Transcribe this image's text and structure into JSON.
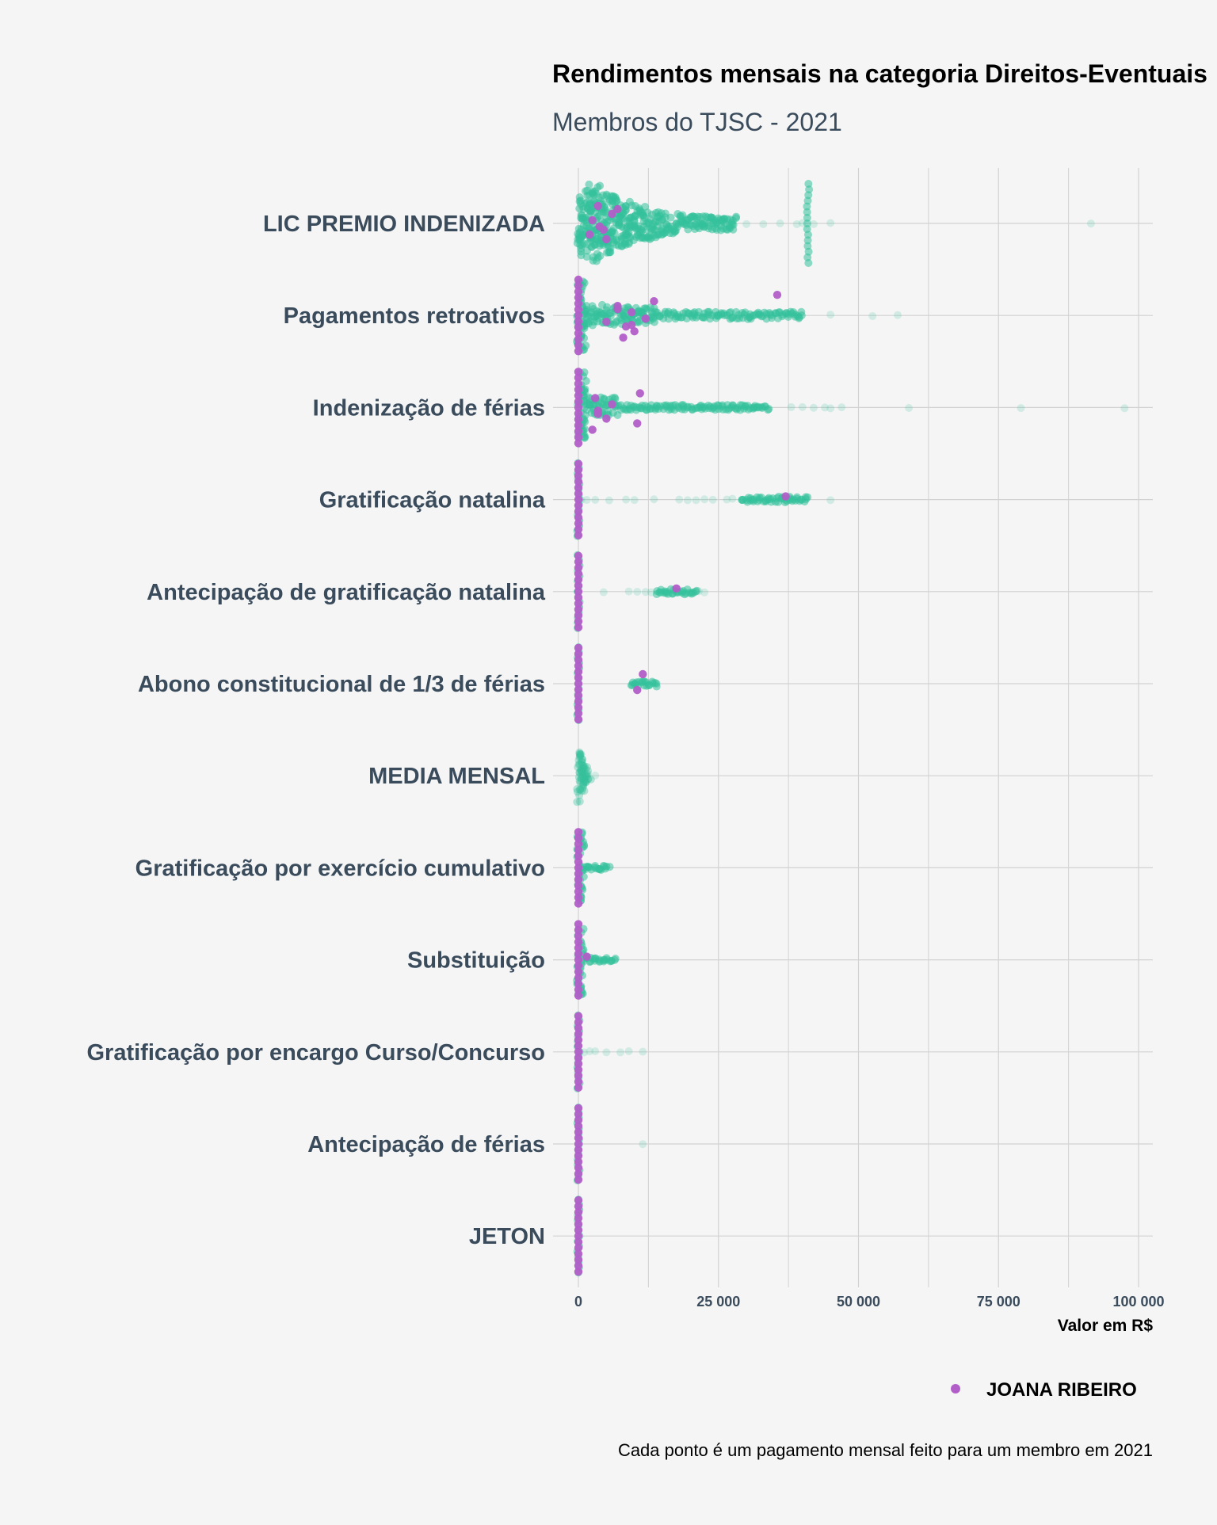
{
  "chart_data": {
    "type": "scatter",
    "title": "Rendimentos mensais na categoria Direitos-Eventuais",
    "subtitle": "Membros do TJSC - 2021",
    "xlabel": "Valor em R$",
    "ylabel": "",
    "xlim": [
      -5000,
      103000
    ],
    "x_ticks": [
      0,
      25000,
      50000,
      75000,
      100000
    ],
    "x_tick_labels": [
      "0",
      "25 000",
      "50 000",
      "75 000",
      "100 000"
    ],
    "grid": true,
    "legend": {
      "position": "bottom-right",
      "entries": [
        "JOANA RIBEIRO"
      ]
    },
    "caption": "Cada ponto é um pagamento mensal feito para um membro em 2021",
    "colors": {
      "all_members": "#33c19a",
      "highlight": "#b25ec8",
      "axis_text": "#3a4b5c",
      "grid": "#d2d2d2",
      "background": "#f5f5f5"
    },
    "categories": [
      "LIC PREMIO INDENIZADA",
      "Pagamentos retroativos",
      "Indenização de férias",
      "Gratificação natalina",
      "Antecipação de gratificação natalina",
      "Abono constitucional de 1/3 de férias",
      "MEDIA MENSAL",
      "Gratificação por exercício cumulativo",
      "Substituição",
      "Gratificação por encargo Curso/Concurso",
      "Antecipação de férias",
      "JETON"
    ],
    "series": [
      {
        "group": "all_members",
        "dense_ranges": [
          [
            [
              0,
              28000
            ],
            [
              41000,
              41000
            ]
          ],
          [
            [
              0,
              40000
            ]
          ],
          [
            [
              0,
              34000
            ]
          ],
          [
            [
              0,
              0
            ],
            [
              29000,
              41000
            ]
          ],
          [
            [
              0,
              0
            ],
            [
              14000,
              21000
            ]
          ],
          [
            [
              0,
              0
            ],
            [
              9500,
              14000
            ]
          ],
          [
            [
              0,
              2000
            ]
          ],
          [
            [
              0,
              5500
            ]
          ],
          [
            [
              0,
              6500
            ]
          ],
          [
            [
              0,
              0
            ]
          ],
          [
            [
              0,
              0
            ]
          ],
          [
            [
              0,
              0
            ]
          ]
        ],
        "outliers": [
          [
            30000,
            33000,
            36000,
            39000,
            40000,
            42000,
            45000,
            91500
          ],
          [
            45000,
            52500,
            57000
          ],
          [
            38000,
            40000,
            42000,
            44000,
            45000,
            47000,
            59000,
            79000,
            97500
          ],
          [
            500,
            1500,
            3000,
            5500,
            8500,
            10000,
            13500,
            18000,
            19500,
            21000,
            22500,
            24000,
            26500,
            27500,
            45000
          ],
          [
            4500,
            9000,
            10500,
            12000,
            13000,
            21500,
            22500
          ],
          [],
          [
            3000
          ],
          [],
          [],
          [
            1000,
            2000,
            3000,
            5000,
            7500,
            9000,
            11500
          ],
          [
            11500
          ],
          []
        ]
      },
      {
        "name": "JOANA RIBEIRO",
        "group": "highlight",
        "values": [
          [
            3500,
            4500,
            6000,
            2000,
            2500,
            5000,
            7000,
            3800
          ],
          [
            0,
            5000,
            7000,
            8500,
            9500,
            10000,
            13500,
            12000,
            8000,
            7000,
            9500,
            35500
          ],
          [
            0,
            3500,
            3000,
            5000,
            6000,
            10500,
            11000,
            3500,
            2500
          ],
          [
            0,
            37000
          ],
          [
            0,
            17500
          ],
          [
            0,
            10500,
            11500
          ],
          [],
          [
            0
          ],
          [
            0,
            1500
          ],
          [
            0
          ],
          [
            0
          ],
          [
            0
          ]
        ]
      }
    ]
  }
}
